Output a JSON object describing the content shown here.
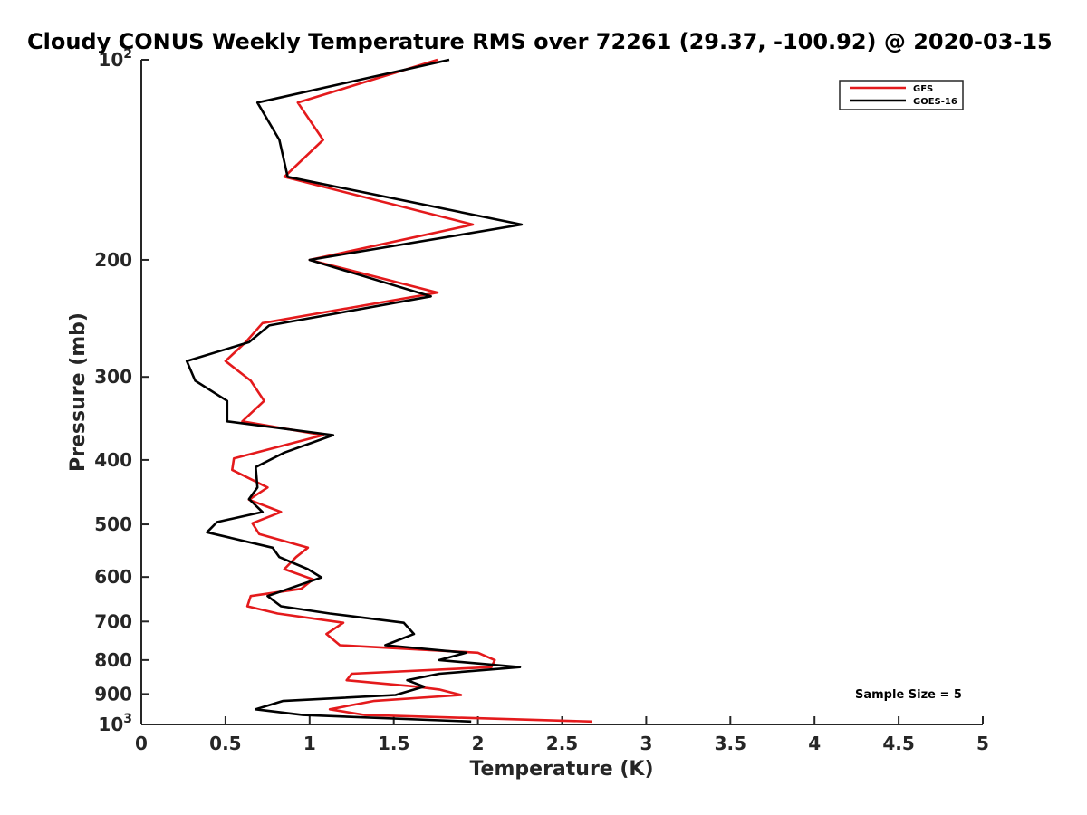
{
  "chart_data": {
    "type": "line",
    "title": "Cloudy CONUS Weekly Temperature RMS over 72261 (29.37, -100.92) @ 2020-03-15",
    "xlabel": "Temperature (K)",
    "ylabel": "Pressure (mb)",
    "xlim": [
      0,
      5
    ],
    "ylim": [
      100,
      1000
    ],
    "yscale": "log",
    "y_reversed": true,
    "grid": false,
    "x_ticks": [
      0,
      0.5,
      1,
      1.5,
      2,
      2.5,
      3,
      3.5,
      4,
      4.5,
      5
    ],
    "x_tick_labels": [
      "0",
      "0.5",
      "1",
      "1.5",
      "2",
      "2.5",
      "3",
      "3.5",
      "4",
      "4.5",
      "5"
    ],
    "y_ticks": [
      {
        "value": 100,
        "base": "10",
        "exp": "2"
      },
      {
        "value": 200,
        "label": "200"
      },
      {
        "value": 300,
        "label": "300"
      },
      {
        "value": 400,
        "label": "400"
      },
      {
        "value": 500,
        "label": "500"
      },
      {
        "value": 600,
        "label": "600"
      },
      {
        "value": 700,
        "label": "700"
      },
      {
        "value": 800,
        "label": "800"
      },
      {
        "value": 900,
        "label": "900"
      },
      {
        "value": 1000,
        "base": "10",
        "exp": "3"
      }
    ],
    "legend_position": "top-right",
    "annotation": "Sample Size = 5",
    "series": [
      {
        "name": "GFS",
        "color": "#e41a1c",
        "points": [
          [
            1.76,
            100
          ],
          [
            0.93,
            116
          ],
          [
            1.08,
            132
          ],
          [
            0.85,
            150
          ],
          [
            1.97,
            177
          ],
          [
            1.0,
            200
          ],
          [
            1.76,
            224
          ],
          [
            0.72,
            249
          ],
          [
            0.62,
            266
          ],
          [
            0.5,
            284
          ],
          [
            0.65,
            304
          ],
          [
            0.73,
            326
          ],
          [
            0.6,
            350
          ],
          [
            1.08,
            367
          ],
          [
            0.55,
            398
          ],
          [
            0.54,
            414
          ],
          [
            0.75,
            440
          ],
          [
            0.64,
            459
          ],
          [
            0.83,
            479
          ],
          [
            0.66,
            498
          ],
          [
            0.7,
            517
          ],
          [
            0.99,
            542
          ],
          [
            0.92,
            560
          ],
          [
            0.85,
            584
          ],
          [
            1.02,
            605
          ],
          [
            0.95,
            625
          ],
          [
            0.65,
            641
          ],
          [
            0.63,
            664
          ],
          [
            0.81,
            681
          ],
          [
            1.2,
            703
          ],
          [
            1.1,
            731
          ],
          [
            1.18,
            760
          ],
          [
            2.0,
            780
          ],
          [
            2.1,
            800
          ],
          [
            2.08,
            820
          ],
          [
            1.25,
            839
          ],
          [
            1.22,
            858
          ],
          [
            1.63,
            877
          ],
          [
            1.77,
            886
          ],
          [
            1.9,
            903
          ],
          [
            1.38,
            922
          ],
          [
            1.12,
            949
          ],
          [
            1.33,
            968
          ],
          [
            2.68,
            990
          ]
        ]
      },
      {
        "name": "GOES-16",
        "color": "#000000",
        "points": [
          [
            1.83,
            100
          ],
          [
            0.69,
            116
          ],
          [
            0.82,
            132
          ],
          [
            0.87,
            150
          ],
          [
            2.26,
            177
          ],
          [
            1.0,
            200
          ],
          [
            1.72,
            227
          ],
          [
            0.76,
            251
          ],
          [
            0.64,
            266
          ],
          [
            0.27,
            284
          ],
          [
            0.32,
            304
          ],
          [
            0.51,
            326
          ],
          [
            0.51,
            350
          ],
          [
            1.14,
            367
          ],
          [
            0.85,
            390
          ],
          [
            0.68,
            410
          ],
          [
            0.69,
            440
          ],
          [
            0.64,
            458
          ],
          [
            0.72,
            479
          ],
          [
            0.45,
            496
          ],
          [
            0.39,
            514
          ],
          [
            0.78,
            542
          ],
          [
            0.82,
            560
          ],
          [
            0.99,
            584
          ],
          [
            1.07,
            601
          ],
          [
            0.9,
            622
          ],
          [
            0.75,
            641
          ],
          [
            0.83,
            664
          ],
          [
            1.12,
            681
          ],
          [
            1.56,
            703
          ],
          [
            1.62,
            731
          ],
          [
            1.45,
            760
          ],
          [
            1.93,
            780
          ],
          [
            1.77,
            800
          ],
          [
            2.25,
            820
          ],
          [
            1.77,
            839
          ],
          [
            1.58,
            858
          ],
          [
            1.68,
            877
          ],
          [
            1.51,
            903
          ],
          [
            0.84,
            922
          ],
          [
            0.68,
            949
          ],
          [
            0.96,
            968
          ],
          [
            1.96,
            990
          ]
        ]
      }
    ]
  }
}
